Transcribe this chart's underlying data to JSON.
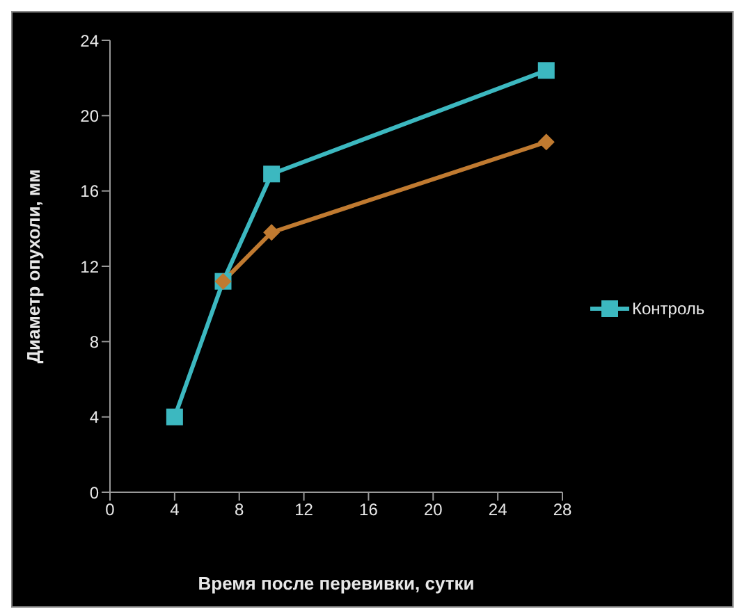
{
  "chart_data": {
    "type": "line",
    "xlabel": "Время после перевивки, сутки",
    "ylabel": "Диаметр опухоли, мм",
    "x": [
      4,
      7,
      10,
      27
    ],
    "series": [
      {
        "color": "#c07a30",
        "marker": "diamond",
        "values": [
          null,
          11.2,
          13.8,
          18.6
        ]
      },
      {
        "name": "Контроль",
        "color": "#3cb8c0",
        "marker": "square",
        "values": [
          4,
          11.2,
          16.9,
          22.4
        ]
      }
    ],
    "xlim": [
      0,
      28
    ],
    "xticks": [
      0,
      4,
      8,
      12,
      16,
      20,
      24,
      28
    ],
    "ylim": [
      0,
      24
    ],
    "yticks": [
      0,
      4,
      8,
      12,
      16,
      20,
      24
    ],
    "grid": false,
    "legend": "right"
  }
}
